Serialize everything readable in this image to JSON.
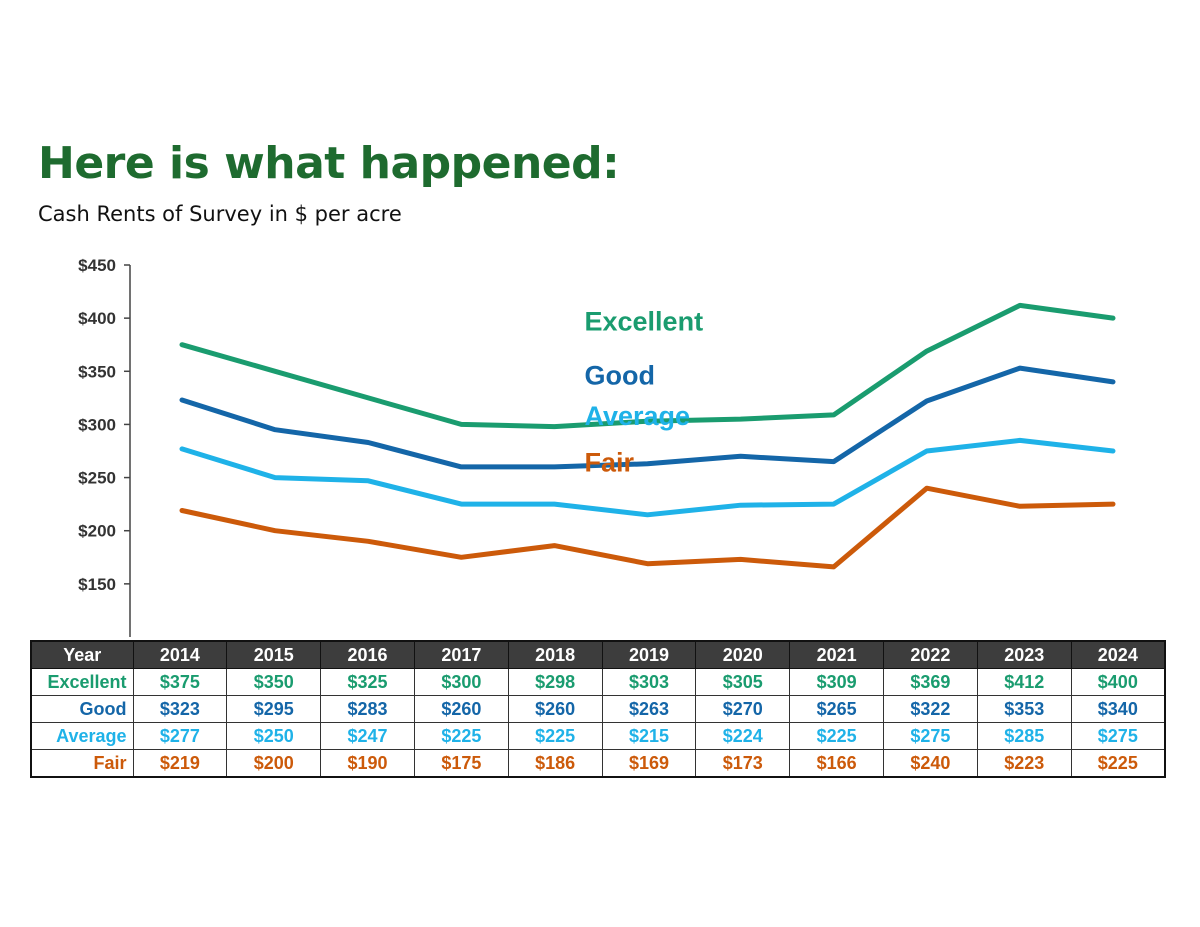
{
  "title": "Here is what happened:",
  "subtitle": "Cash Rents of Survey in $ per acre",
  "colors": {
    "title": "#1e6b2f",
    "excellent": "#1a9c6f",
    "good": "#1466a8",
    "average": "#1fb2e8",
    "fair": "#cc5a0a",
    "axis": "#444444",
    "tick_text": "#333333"
  },
  "chart_data": {
    "type": "line",
    "title": "Cash Rents of Survey in $ per acre",
    "xlabel": "",
    "ylabel": "",
    "x": [
      "2014",
      "2015",
      "2016",
      "2017",
      "2018",
      "2019",
      "2020",
      "2021",
      "2022",
      "2023",
      "2024"
    ],
    "ylim": [
      100,
      450
    ],
    "yticks": [
      150,
      200,
      250,
      300,
      350,
      400,
      450
    ],
    "ytick_labels": [
      "$150",
      "$200",
      "$250",
      "$300",
      "$350",
      "$400",
      "$450"
    ],
    "grid": false,
    "series": [
      {
        "key": "excellent",
        "name": "Excellent",
        "color": "#1a9c6f",
        "values": [
          375,
          350,
          325,
          300,
          298,
          303,
          305,
          309,
          369,
          412,
          400
        ],
        "label_anchor": {
          "x": "2019",
          "y": 397
        }
      },
      {
        "key": "good",
        "name": "Good",
        "color": "#1466a8",
        "values": [
          323,
          295,
          283,
          260,
          260,
          263,
          270,
          265,
          322,
          353,
          340
        ],
        "label_anchor": {
          "x": "2019",
          "y": 346
        }
      },
      {
        "key": "average",
        "name": "Average",
        "color": "#1fb2e8",
        "values": [
          277,
          250,
          247,
          225,
          225,
          215,
          224,
          225,
          275,
          285,
          275
        ],
        "label_anchor": {
          "x": "2019",
          "y": 308
        }
      },
      {
        "key": "fair",
        "name": "Fair",
        "color": "#cc5a0a",
        "values": [
          219,
          200,
          190,
          175,
          186,
          169,
          173,
          166,
          240,
          223,
          225
        ],
        "label_anchor": {
          "x": "2019",
          "y": 264
        }
      }
    ]
  },
  "table": {
    "header_label": "Year",
    "years": [
      "2014",
      "2015",
      "2016",
      "2017",
      "2018",
      "2019",
      "2020",
      "2021",
      "2022",
      "2023",
      "2024"
    ],
    "rows": [
      {
        "key": "excellent",
        "label": "Excellent",
        "color": "#1a9c6f",
        "cells": [
          "$375",
          "$350",
          "$325",
          "$300",
          "$298",
          "$303",
          "$305",
          "$309",
          "$369",
          "$412",
          "$400"
        ]
      },
      {
        "key": "good",
        "label": "Good",
        "color": "#1466a8",
        "cells": [
          "$323",
          "$295",
          "$283",
          "$260",
          "$260",
          "$263",
          "$270",
          "$265",
          "$322",
          "$353",
          "$340"
        ]
      },
      {
        "key": "average",
        "label": "Average",
        "color": "#1fb2e8",
        "cells": [
          "$277",
          "$250",
          "$247",
          "$225",
          "$225",
          "$215",
          "$224",
          "$225",
          "$275",
          "$285",
          "$275"
        ]
      },
      {
        "key": "fair",
        "label": "Fair",
        "color": "#cc5a0a",
        "cells": [
          "$219",
          "$200",
          "$190",
          "$175",
          "$186",
          "$169",
          "$173",
          "$166",
          "$240",
          "$223",
          "$225"
        ]
      }
    ]
  }
}
